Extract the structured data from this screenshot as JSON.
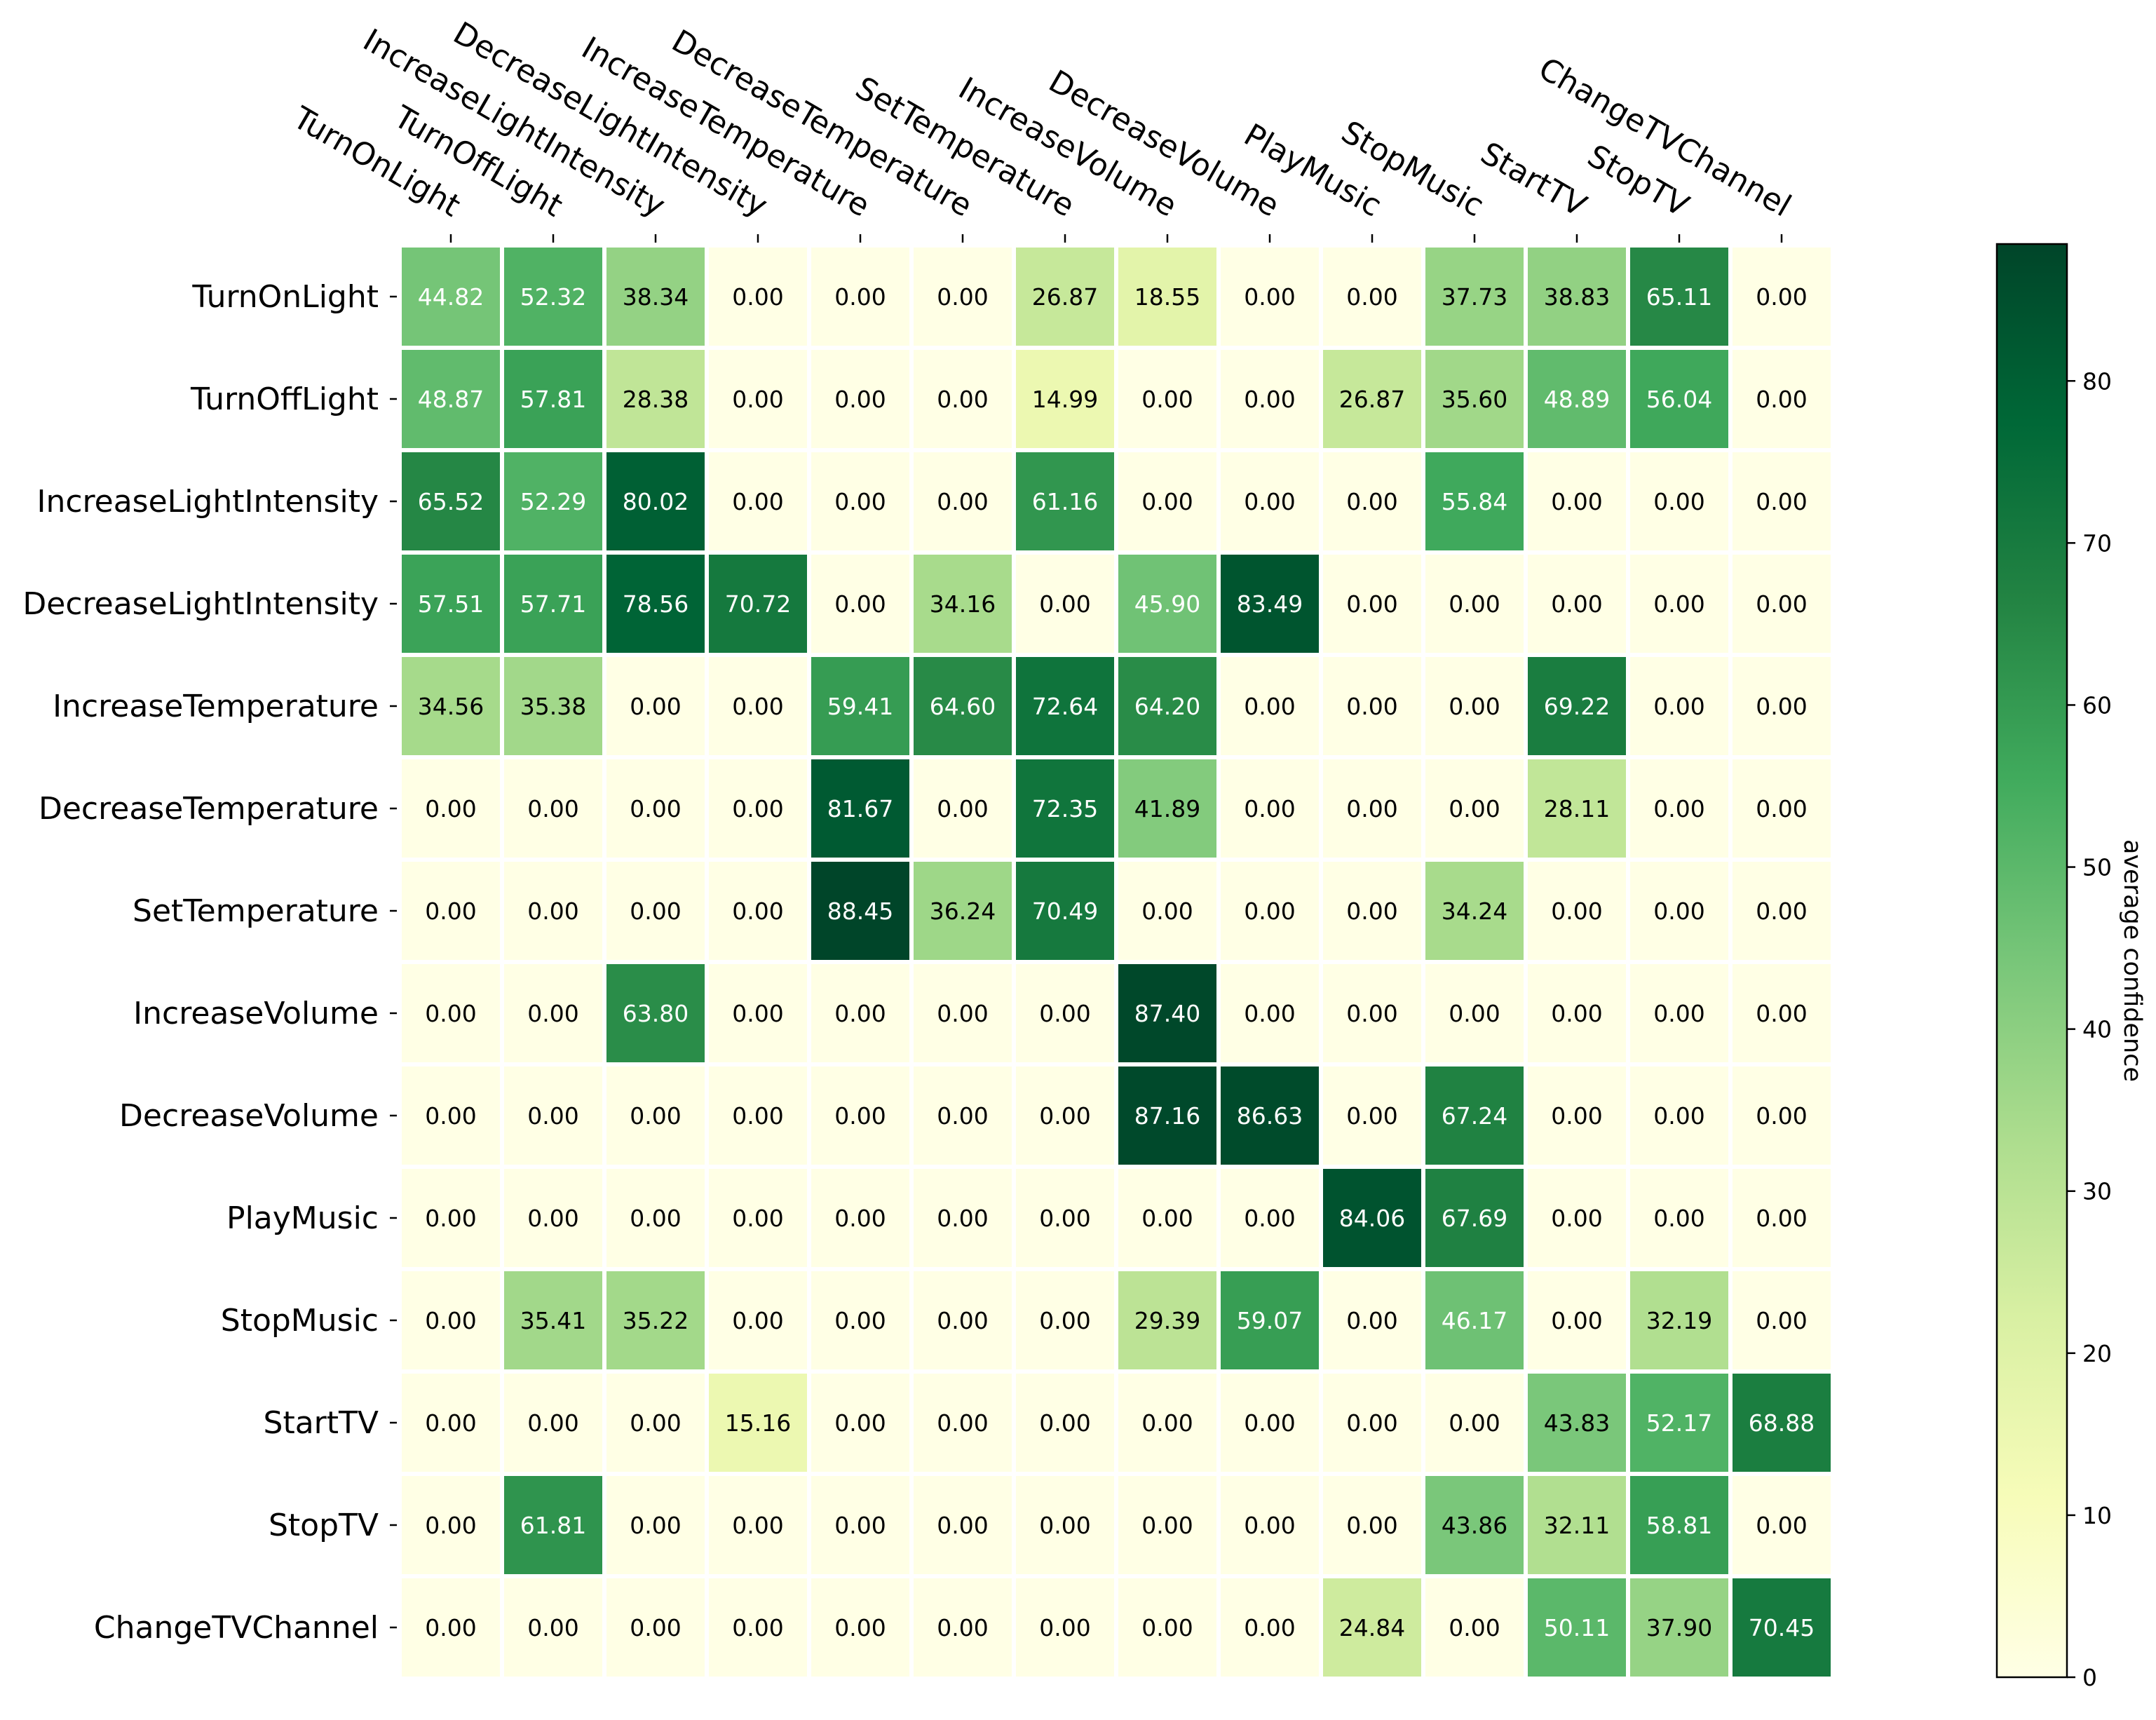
{
  "chart_data": {
    "type": "heatmap",
    "title": "",
    "xlabel": "",
    "ylabel": "",
    "x_labels": [
      "TurnOnLight",
      "TurnOffLight",
      "IncreaseLightIntensity",
      "DecreaseLightIntensity",
      "IncreaseTemperature",
      "DecreaseTemperature",
      "SetTemperature",
      "IncreaseVolume",
      "DecreaseVolume",
      "PlayMusic",
      "StopMusic",
      "StartTV",
      "StopTV",
      "ChangeTVChannel"
    ],
    "y_labels": [
      "TurnOnLight",
      "TurnOffLight",
      "IncreaseLightIntensity",
      "DecreaseLightIntensity",
      "IncreaseTemperature",
      "DecreaseTemperature",
      "SetTemperature",
      "IncreaseVolume",
      "DecreaseVolume",
      "PlayMusic",
      "StopMusic",
      "StartTV",
      "StopTV",
      "ChangeTVChannel"
    ],
    "values": [
      [
        "44.82",
        "52.32",
        "38.34",
        "0.00",
        "0.00",
        "0.00",
        "26.87",
        "18.55",
        "0.00",
        "0.00",
        "37.73",
        "38.83",
        "65.11",
        "0.00"
      ],
      [
        "48.87",
        "57.81",
        "28.38",
        "0.00",
        "0.00",
        "0.00",
        "14.99",
        "0.00",
        "0.00",
        "26.87",
        "35.60",
        "48.89",
        "56.04",
        "0.00"
      ],
      [
        "65.52",
        "52.29",
        "80.02",
        "0.00",
        "0.00",
        "0.00",
        "61.16",
        "0.00",
        "0.00",
        "0.00",
        "55.84",
        "0.00",
        "0.00",
        "0.00"
      ],
      [
        "57.51",
        "57.71",
        "78.56",
        "70.72",
        "0.00",
        "34.16",
        "0.00",
        "45.90",
        "83.49",
        "0.00",
        "0.00",
        "0.00",
        "0.00",
        "0.00"
      ],
      [
        "34.56",
        "35.38",
        "0.00",
        "0.00",
        "59.41",
        "64.60",
        "72.64",
        "64.20",
        "0.00",
        "0.00",
        "0.00",
        "69.22",
        "0.00",
        "0.00"
      ],
      [
        "0.00",
        "0.00",
        "0.00",
        "0.00",
        "81.67",
        "0.00",
        "72.35",
        "41.89",
        "0.00",
        "0.00",
        "0.00",
        "28.11",
        "0.00",
        "0.00"
      ],
      [
        "0.00",
        "0.00",
        "0.00",
        "0.00",
        "88.45",
        "36.24",
        "70.49",
        "0.00",
        "0.00",
        "0.00",
        "34.24",
        "0.00",
        "0.00",
        "0.00"
      ],
      [
        "0.00",
        "0.00",
        "63.80",
        "0.00",
        "0.00",
        "0.00",
        "0.00",
        "87.40",
        "0.00",
        "0.00",
        "0.00",
        "0.00",
        "0.00",
        "0.00"
      ],
      [
        "0.00",
        "0.00",
        "0.00",
        "0.00",
        "0.00",
        "0.00",
        "0.00",
        "87.16",
        "86.63",
        "0.00",
        "67.24",
        "0.00",
        "0.00",
        "0.00"
      ],
      [
        "0.00",
        "0.00",
        "0.00",
        "0.00",
        "0.00",
        "0.00",
        "0.00",
        "0.00",
        "0.00",
        "84.06",
        "67.69",
        "0.00",
        "0.00",
        "0.00"
      ],
      [
        "0.00",
        "35.41",
        "35.22",
        "0.00",
        "0.00",
        "0.00",
        "0.00",
        "29.39",
        "59.07",
        "0.00",
        "46.17",
        "0.00",
        "32.19",
        "0.00"
      ],
      [
        "0.00",
        "0.00",
        "0.00",
        "15.16",
        "0.00",
        "0.00",
        "0.00",
        "0.00",
        "0.00",
        "0.00",
        "0.00",
        "43.83",
        "52.17",
        "68.88"
      ],
      [
        "0.00",
        "61.81",
        "0.00",
        "0.00",
        "0.00",
        "0.00",
        "0.00",
        "0.00",
        "0.00",
        "0.00",
        "43.86",
        "32.11",
        "58.81",
        "0.00"
      ],
      [
        "0.00",
        "0.00",
        "0.00",
        "0.00",
        "0.00",
        "0.00",
        "0.00",
        "0.00",
        "0.00",
        "24.84",
        "0.00",
        "50.11",
        "37.90",
        "70.45"
      ]
    ],
    "colormap": "YlGn",
    "colorbar": {
      "label": "average confidence",
      "range": [
        0,
        88.45
      ],
      "ticks": [
        "0",
        "10",
        "20",
        "30",
        "40",
        "50",
        "60",
        "70",
        "80"
      ]
    },
    "colors": {
      "text_light": "#ffffff",
      "text_dark": "#000000",
      "cell_border": "#ffffff",
      "colormap_stops": [
        "#ffffe5",
        "#f7fcb9",
        "#d9f0a3",
        "#addd8e",
        "#78c679",
        "#41ab5d",
        "#238443",
        "#006837",
        "#004529"
      ]
    },
    "legend": "right"
  }
}
